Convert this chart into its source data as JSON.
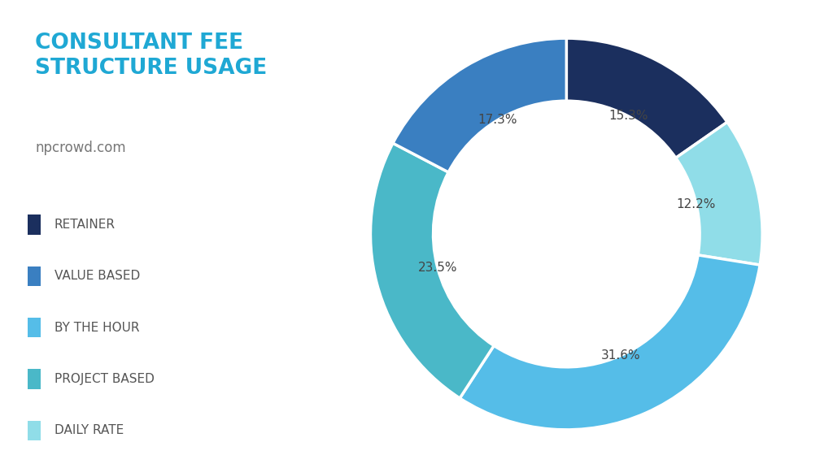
{
  "title": "CONSULTANT FEE\nSTRUCTURE USAGE",
  "subtitle": "npcrowd.com",
  "labels": [
    "RETAINER",
    "VALUE BASED",
    "BY THE HOUR",
    "PROJECT BASED",
    "DAILY RATE"
  ],
  "colors": [
    "#1b2f5e",
    "#3a7fc1",
    "#55bde8",
    "#4ab8c8",
    "#90dde8"
  ],
  "values": [
    15.3,
    17.3,
    31.6,
    23.5,
    12.2
  ],
  "pct_labels": [
    "15.3%",
    "17.3%",
    "31.6%",
    "23.5%",
    "12.2%"
  ],
  "plot_order": [
    0,
    1,
    2,
    3,
    4
  ],
  "title_color": "#1fa8d4",
  "subtitle_color": "#777777",
  "legend_text_color": "#555555",
  "background_color": "#ffffff",
  "start_angle": 90,
  "donut_width": 0.32
}
